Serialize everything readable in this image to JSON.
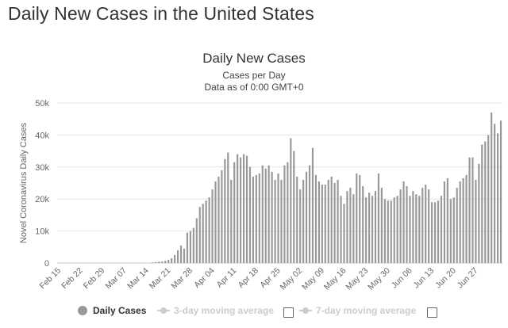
{
  "page": {
    "title": "Daily New Cases in the United States"
  },
  "chart_data": {
    "type": "bar",
    "title": "Daily New Cases",
    "subtitle": "Cases per Day",
    "subtitle2": "Data as of 0:00 GMT+0",
    "ylabel": "Novel Coronavirus Daily Cases",
    "xlabel": "",
    "ylim": [
      0,
      50000
    ],
    "yticks": [
      0,
      10000,
      20000,
      30000,
      40000,
      50000
    ],
    "ytick_labels": [
      "0",
      "10k",
      "20k",
      "30k",
      "40k",
      "50k"
    ],
    "grid": true,
    "legend_position": "bottom",
    "start_date": "Feb 15",
    "x_tick_labels": [
      "Feb 15",
      "Feb 22",
      "Feb 29",
      "Mar 07",
      "Mar 14",
      "Mar 21",
      "Mar 28",
      "Apr 04",
      "Apr 11",
      "Apr 18",
      "Apr 25",
      "May 02",
      "May 09",
      "May 16",
      "May 23",
      "May 30",
      "Jun 06",
      "Jun 13",
      "Jun 20",
      "Jun 27"
    ],
    "series": [
      {
        "name": "Daily Cases",
        "color": "#999999",
        "values": [
          0,
          0,
          0,
          0,
          0,
          0,
          0,
          0,
          0,
          0,
          0,
          0,
          0,
          0,
          0,
          0,
          0,
          0,
          0,
          0,
          0,
          0,
          0,
          0,
          0,
          0,
          0,
          0,
          0,
          0,
          200,
          300,
          400,
          500,
          700,
          1000,
          1500,
          2500,
          4000,
          5500,
          4500,
          9500,
          10000,
          11000,
          14000,
          17500,
          18500,
          19500,
          20500,
          23000,
          25500,
          27000,
          29000,
          32500,
          34500,
          26000,
          31500,
          34000,
          33000,
          34000,
          33500,
          30000,
          27000,
          27500,
          28000,
          30500,
          29500,
          30500,
          28500,
          26000,
          28000,
          26000,
          30500,
          31500,
          39000,
          35000,
          27000,
          23000,
          26000,
          28500,
          30500,
          36000,
          27500,
          25500,
          24500,
          24500,
          26000,
          27000,
          25000,
          26000,
          21000,
          18500,
          22500,
          23500,
          21500,
          28000,
          27500,
          24000,
          20500,
          22000,
          21000,
          22500,
          28000,
          23500,
          20000,
          19500,
          19500,
          20500,
          21000,
          23000,
          25500,
          24000,
          21000,
          22500,
          21500,
          21000,
          23500,
          24500,
          23000,
          19000,
          19000,
          19500,
          21000,
          25500,
          26500,
          20000,
          20500,
          23500,
          25500,
          26500,
          27500,
          33000,
          33000,
          26000,
          31000,
          37000,
          38000,
          40000,
          47000,
          43500,
          40500,
          44500
        ]
      }
    ]
  },
  "legend": {
    "daily_cases": "Daily Cases",
    "ma3": "3-day moving average",
    "ma7": "7-day moving average"
  },
  "colors": {
    "bar": "#999999",
    "grid": "#e6e6e6",
    "axis_text": "#666666"
  }
}
